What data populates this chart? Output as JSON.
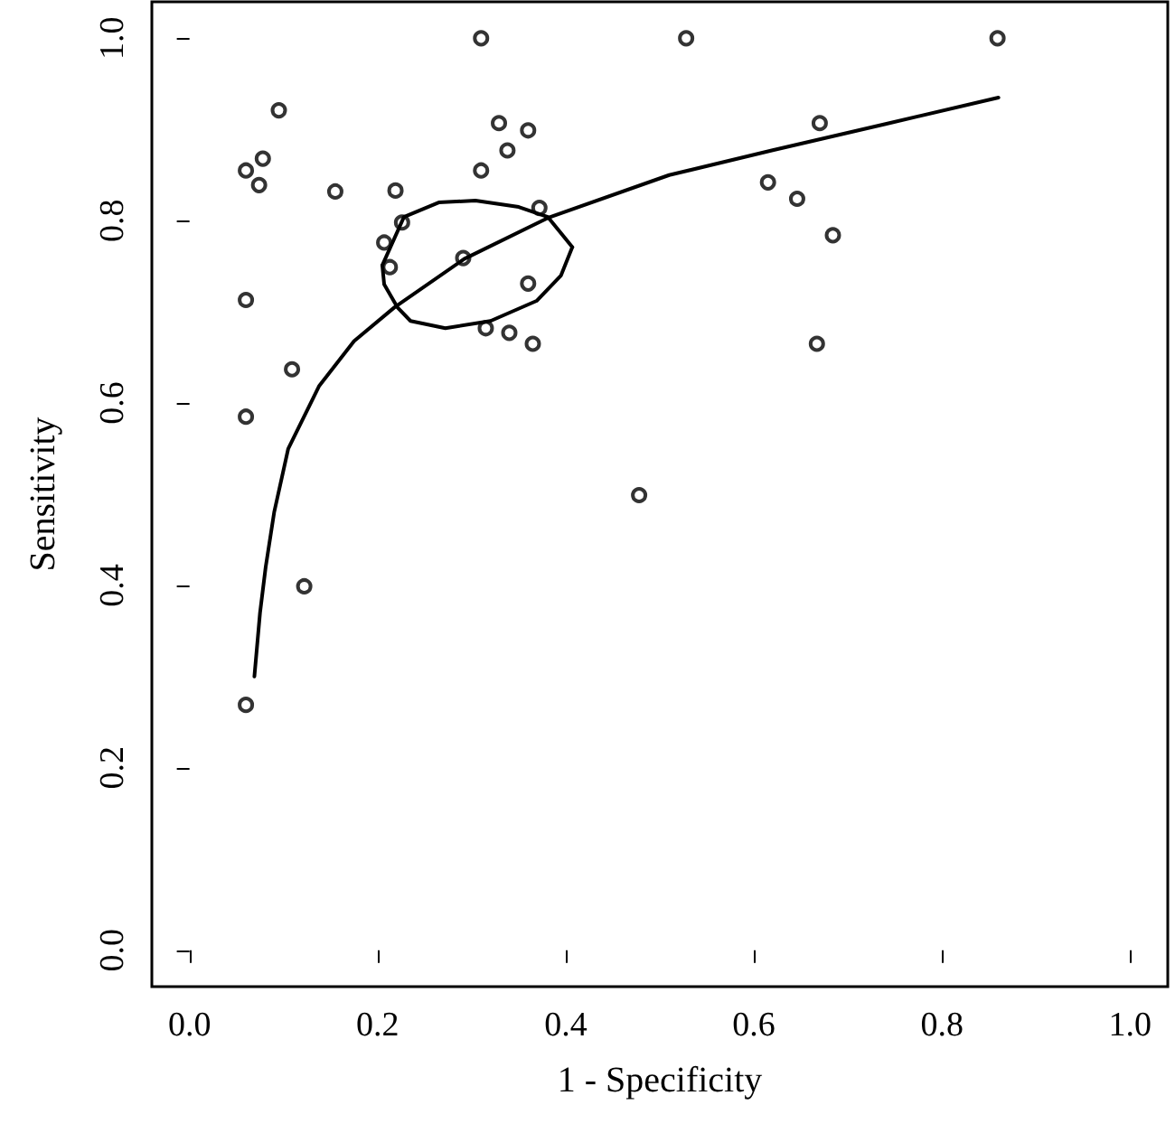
{
  "chart_data": {
    "type": "scatter",
    "xlabel": "1 - Specificity",
    "ylabel": "Sensitivity",
    "xlim": [
      -0.04,
      1.04
    ],
    "ylim": [
      -0.04,
      1.04
    ],
    "xticks": [
      {
        "value": 0,
        "label": "0.0"
      },
      {
        "value": 0.2,
        "label": "0.2"
      },
      {
        "value": 0.4,
        "label": "0.4"
      },
      {
        "value": 0.6,
        "label": "0.6"
      },
      {
        "value": 0.8,
        "label": "0.8"
      },
      {
        "value": 1,
        "label": "1.0"
      }
    ],
    "yticks": [
      {
        "value": 0,
        "label": "0.0"
      },
      {
        "value": 0.2,
        "label": "0.2"
      },
      {
        "value": 0.4,
        "label": "0.4"
      },
      {
        "value": 0.6,
        "label": "0.6"
      },
      {
        "value": 0.8,
        "label": "0.8"
      },
      {
        "value": 1,
        "label": "1.0"
      }
    ],
    "grid": false,
    "marker": "circle",
    "series": [
      {
        "color": "#000000",
        "x": [
          0.31,
          0.095,
          0.329,
          0.36,
          0.338,
          0.078,
          0.06,
          0.074,
          0.31,
          0.155,
          0.219,
          0.372,
          0.226,
          0.207,
          0.213,
          0.291,
          0.36,
          0.06,
          0.315,
          0.34,
          0.365,
          0.109,
          0.06,
          0.478,
          0.122,
          0.06,
          0.528,
          0.859,
          0.67,
          0.615,
          0.646,
          0.684,
          0.667
        ],
        "values": [
          1.0,
          0.921,
          0.907,
          0.899,
          0.877,
          0.868,
          0.855,
          0.839,
          0.855,
          0.832,
          0.833,
          0.814,
          0.798,
          0.776,
          0.749,
          0.759,
          0.731,
          0.713,
          0.682,
          0.677,
          0.665,
          0.637,
          0.585,
          0.499,
          0.399,
          0.269,
          1.0,
          1.0,
          0.907,
          0.842,
          0.824,
          0.784,
          0.665
        ]
      },
      {
        "type": "line",
        "color": "#000000",
        "marker": "none",
        "line_style": "solid",
        "x": [
          0.069,
          0.075,
          0.081,
          0.09,
          0.105,
          0.138,
          0.175,
          0.218,
          0.292,
          0.381,
          0.51,
          0.619,
          0.74,
          0.86
        ],
        "values": [
          0.3,
          0.37,
          0.42,
          0.48,
          0.55,
          0.619,
          0.668,
          0.705,
          0.758,
          0.803,
          0.85,
          0.877,
          0.906,
          0.935
        ]
      },
      {
        "type": "line",
        "color": "#000000",
        "marker": "none",
        "line_style": "solid",
        "x": [
          0.205,
          0.228,
          0.265,
          0.304,
          0.35,
          0.381,
          0.407
        ],
        "values": [
          0.751,
          0.804,
          0.82,
          0.822,
          0.815,
          0.804,
          0.771
        ]
      },
      {
        "type": "line",
        "color": "#000000",
        "marker": "none",
        "line_style": "solid",
        "x": [
          0.205,
          0.207,
          0.221,
          0.235,
          0.272,
          0.32,
          0.369,
          0.395,
          0.407
        ],
        "values": [
          0.751,
          0.73,
          0.705,
          0.69,
          0.682,
          0.69,
          0.712,
          0.74,
          0.771
        ]
      }
    ]
  }
}
